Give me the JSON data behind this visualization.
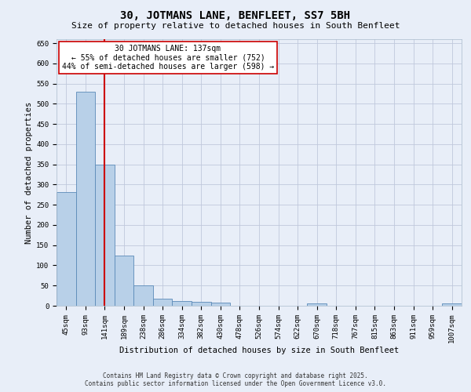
{
  "title": "30, JOTMANS LANE, BENFLEET, SS7 5BH",
  "subtitle": "Size of property relative to detached houses in South Benfleet",
  "xlabel": "Distribution of detached houses by size in South Benfleet",
  "ylabel": "Number of detached properties",
  "categories": [
    "45sqm",
    "93sqm",
    "141sqm",
    "189sqm",
    "238sqm",
    "286sqm",
    "334sqm",
    "382sqm",
    "430sqm",
    "478sqm",
    "526sqm",
    "574sqm",
    "622sqm",
    "670sqm",
    "718sqm",
    "767sqm",
    "815sqm",
    "863sqm",
    "911sqm",
    "959sqm",
    "1007sqm"
  ],
  "values": [
    282,
    530,
    350,
    125,
    50,
    18,
    12,
    10,
    7,
    0,
    0,
    0,
    0,
    5,
    0,
    0,
    0,
    0,
    0,
    0,
    5
  ],
  "bar_color": "#b8d0e8",
  "bar_edge_color": "#5a8ab8",
  "vline_x_index": 2,
  "vline_color": "#cc0000",
  "ylim": [
    0,
    660
  ],
  "yticks": [
    0,
    50,
    100,
    150,
    200,
    250,
    300,
    350,
    400,
    450,
    500,
    550,
    600,
    650
  ],
  "annotation_text": "30 JOTMANS LANE: 137sqm\n← 55% of detached houses are smaller (752)\n44% of semi-detached houses are larger (598) →",
  "annotation_box_facecolor": "#ffffff",
  "annotation_border_color": "#cc0000",
  "footer_line1": "Contains HM Land Registry data © Crown copyright and database right 2025.",
  "footer_line2": "Contains public sector information licensed under the Open Government Licence v3.0.",
  "background_color": "#e8eef8",
  "title_fontsize": 10,
  "subtitle_fontsize": 8,
  "axis_label_fontsize": 7.5,
  "tick_fontsize": 6.5,
  "annotation_fontsize": 7
}
